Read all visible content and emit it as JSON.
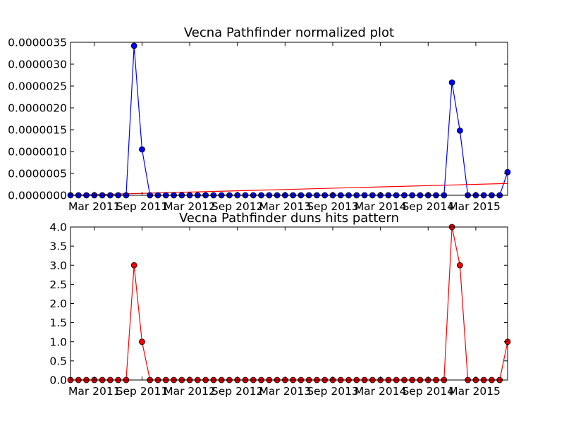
{
  "chart_data": [
    {
      "type": "line",
      "title": "Vecna Pathfinder normalized plot",
      "xlabel": "",
      "ylabel": "",
      "x_start": "2010-12",
      "x_tick_labels": [
        "Mar 2011",
        "Sep 2011",
        "Mar 2012",
        "Sep 2012",
        "Mar 2013",
        "Sep 2013",
        "Mar 2014",
        "Sep 2014",
        "Mar 2015"
      ],
      "ylim": [
        0,
        3.5e-06
      ],
      "y_tick_labels": [
        "0.0000000",
        "0.0000005",
        "0.0000010",
        "0.0000015",
        "0.0000020",
        "0.0000025",
        "0.0000030",
        "0.0000035"
      ],
      "grid": false,
      "legend": "none",
      "series": [
        {
          "color": "#0000ff",
          "marker": "circle",
          "values": [
            0,
            0,
            0,
            0,
            0,
            0,
            0,
            0,
            3.42e-06,
            1.05e-06,
            0,
            0,
            0,
            0,
            0,
            0,
            0,
            0,
            0,
            0,
            0,
            0,
            0,
            0,
            0,
            0,
            0,
            0,
            0,
            0,
            0,
            0,
            0,
            0,
            0,
            0,
            0,
            0,
            0,
            0,
            0,
            0,
            0,
            0,
            0,
            0,
            0,
            0,
            2.58e-06,
            1.48e-06,
            0,
            0,
            0,
            0,
            0,
            5.3e-07
          ]
        },
        {
          "color": "#ff0000",
          "marker": "none",
          "kind": "trend",
          "values": [
            0,
            2.7e-07
          ]
        }
      ]
    },
    {
      "type": "line",
      "title": "Vecna Pathfinder duns hits pattern",
      "xlabel": "",
      "ylabel": "",
      "x_start": "2010-12",
      "x_tick_labels": [
        "Mar 2011",
        "Sep 2011",
        "Mar 2012",
        "Sep 2012",
        "Mar 2013",
        "Sep 2013",
        "Mar 2014",
        "Sep 2014",
        "Mar 2015"
      ],
      "ylim": [
        0,
        4.0
      ],
      "y_tick_labels": [
        "0.0",
        "0.5",
        "1.0",
        "1.5",
        "2.0",
        "2.5",
        "3.0",
        "3.5",
        "4.0"
      ],
      "grid": false,
      "legend": "none",
      "series": [
        {
          "color": "#ff0000",
          "marker": "circle",
          "values": [
            0,
            0,
            0,
            0,
            0,
            0,
            0,
            0,
            3,
            1,
            0,
            0,
            0,
            0,
            0,
            0,
            0,
            0,
            0,
            0,
            0,
            0,
            0,
            0,
            0,
            0,
            0,
            0,
            0,
            0,
            0,
            0,
            0,
            0,
            0,
            0,
            0,
            0,
            0,
            0,
            0,
            0,
            0,
            0,
            0,
            0,
            0,
            0,
            4,
            3,
            0,
            0,
            0,
            0,
            0,
            1
          ]
        }
      ]
    }
  ]
}
